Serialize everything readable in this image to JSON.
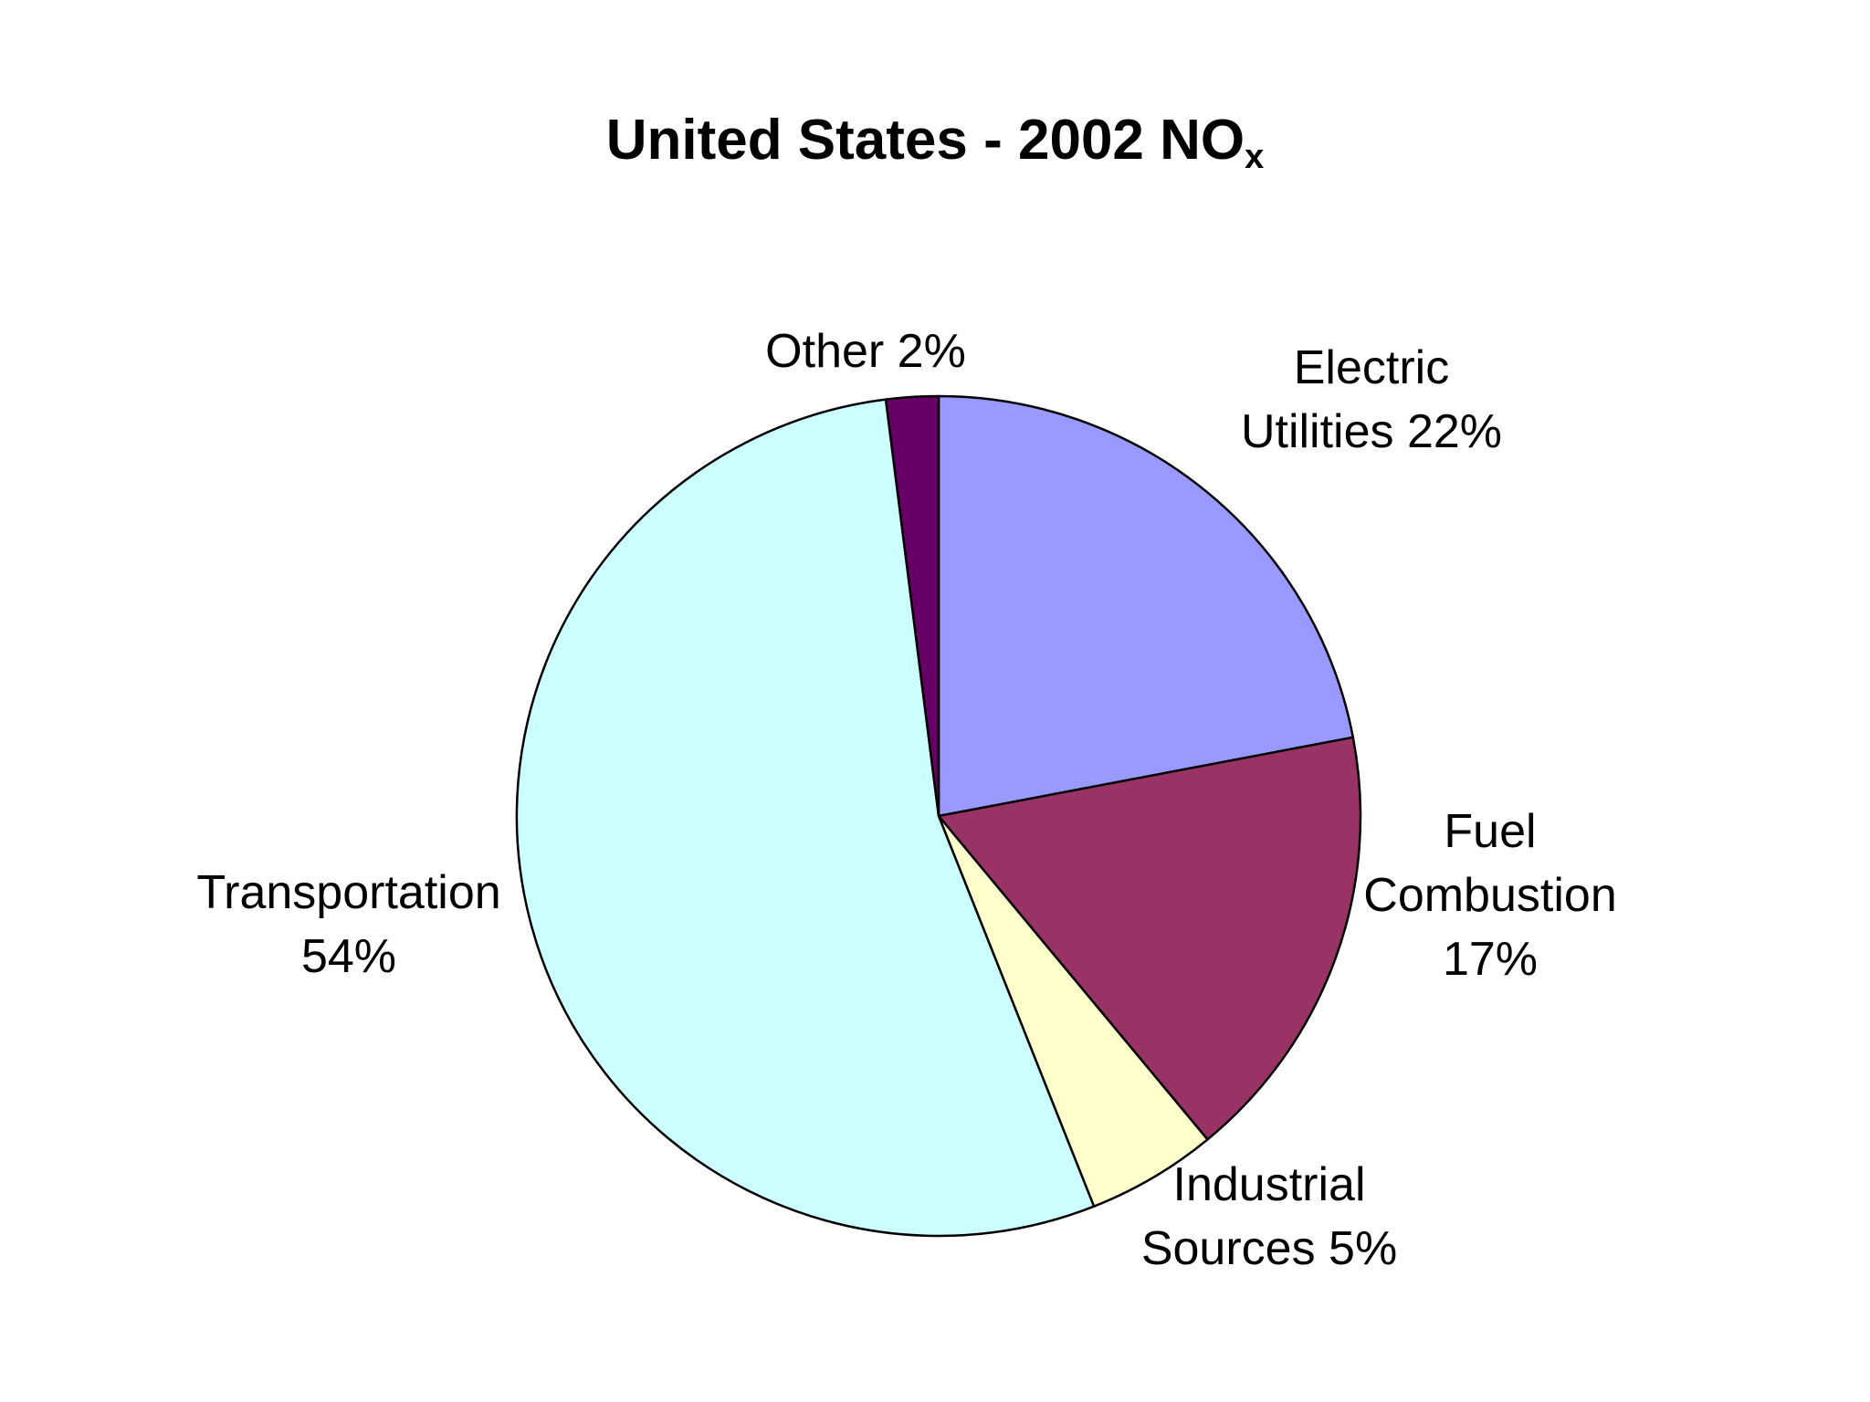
{
  "chart_data": {
    "type": "pie",
    "title": "United States - 2002 NO",
    "title_subscript": "x",
    "slices": [
      {
        "label_lines": [
          "Electric",
          "Utilities 22%"
        ],
        "value": 22,
        "color": "#9999ff"
      },
      {
        "label_lines": [
          "Fuel",
          "Combustion",
          "17%"
        ],
        "value": 17,
        "color": "#993366"
      },
      {
        "label_lines": [
          "Industrial",
          "Sources 5%"
        ],
        "value": 5,
        "color": "#ffffcc"
      },
      {
        "label_lines": [
          "Transportation",
          "54%"
        ],
        "value": 54,
        "color": "#ccffff"
      },
      {
        "label_lines": [
          "Other 2%"
        ],
        "value": 2,
        "color": "#660066"
      }
    ],
    "legend": "none"
  }
}
